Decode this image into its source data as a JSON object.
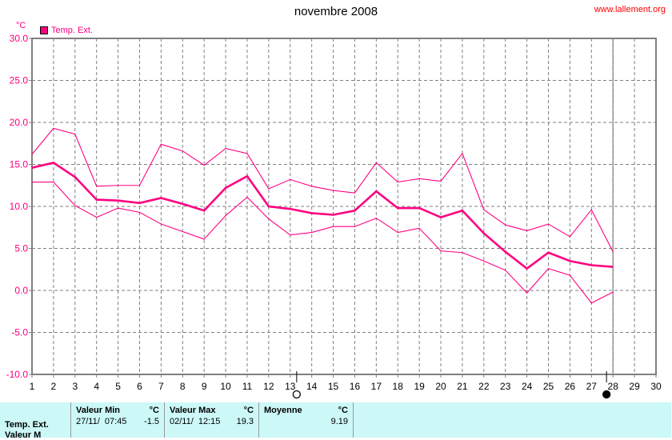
{
  "title": "novembre 2008",
  "site": "www.lallement.org",
  "colors": {
    "series": "#ff0080",
    "grid": "#808080",
    "panel": "#ccf8f8",
    "site": "#ff0000"
  },
  "chart_data": {
    "type": "line",
    "title": "novembre 2008",
    "ylabel": "°C",
    "ylim": [
      -10,
      30
    ],
    "xlim": [
      1,
      30
    ],
    "grid": true,
    "legend": {
      "position": "top-left",
      "entries": [
        "Temp. Ext."
      ]
    },
    "y_ticks": [
      "30.0",
      "25.0",
      "20.0",
      "15.0",
      "10.0",
      "5.0",
      "0.0",
      "-5.0",
      "-10.0"
    ],
    "x_ticks": [
      "1",
      "2",
      "3",
      "4",
      "5",
      "6",
      "7",
      "8",
      "9",
      "10",
      "11",
      "12",
      "13",
      "14",
      "15",
      "16",
      "17",
      "18",
      "19",
      "20",
      "21",
      "22",
      "23",
      "24",
      "25",
      "26",
      "27",
      "28",
      "29",
      "30"
    ],
    "x": [
      1,
      2,
      3,
      4,
      5,
      6,
      7,
      8,
      9,
      10,
      11,
      12,
      13,
      14,
      15,
      16,
      17,
      18,
      19,
      20,
      21,
      22,
      23,
      24,
      25,
      26,
      27,
      28
    ],
    "series": [
      {
        "role": "max",
        "values": [
          16.2,
          19.3,
          18.6,
          12.4,
          12.5,
          12.5,
          17.4,
          16.6,
          14.9,
          16.9,
          16.3,
          12.1,
          13.2,
          12.4,
          11.9,
          11.6,
          15.2,
          12.9,
          13.3,
          13.0,
          16.3,
          9.6,
          7.8,
          7.1,
          7.9,
          6.4,
          9.6,
          4.6
        ]
      },
      {
        "role": "mean",
        "values": [
          14.6,
          15.2,
          13.5,
          10.8,
          10.7,
          10.4,
          11.0,
          10.3,
          9.5,
          12.2,
          13.6,
          10.0,
          9.7,
          9.2,
          9.0,
          9.5,
          11.8,
          9.8,
          9.8,
          8.7,
          9.5,
          6.8,
          4.6,
          2.6,
          4.5,
          3.5,
          3.0,
          2.8
        ]
      },
      {
        "role": "min",
        "values": [
          12.9,
          12.9,
          10.1,
          8.7,
          9.8,
          9.3,
          7.9,
          7.0,
          6.1,
          8.9,
          11.1,
          8.5,
          6.6,
          6.9,
          7.6,
          7.6,
          8.6,
          6.9,
          7.4,
          4.7,
          4.5,
          3.5,
          2.4,
          -0.3,
          2.6,
          1.8,
          -1.5,
          -0.2
        ]
      }
    ],
    "cursor_day": 28,
    "markers": [
      {
        "type": "hollow-circle",
        "day": 13.3
      },
      {
        "type": "filled-circle",
        "day": 27.7
      }
    ]
  },
  "panel": {
    "row_label": "Temp. Ext.",
    "row_label2": "Valeur M",
    "min": {
      "header": "Valeur Min",
      "unit": "°C",
      "datetime": "27/11/  07:45",
      "value": "-1.5"
    },
    "max": {
      "header": "Valeur Max",
      "unit": "°C",
      "datetime": "02/11/  12:15",
      "value": "19.3"
    },
    "avg": {
      "header": "Moyenne",
      "unit": "°C",
      "value": "9.19"
    }
  }
}
